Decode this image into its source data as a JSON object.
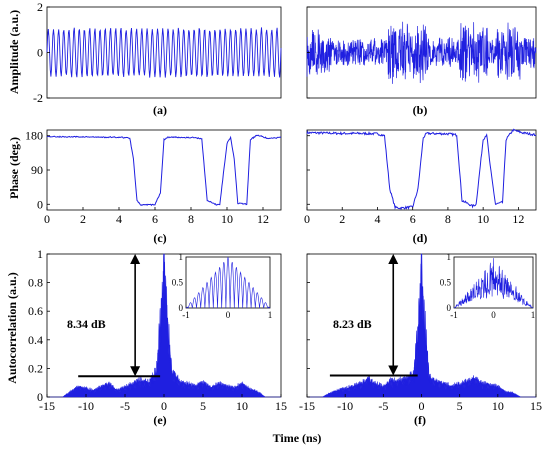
{
  "figure": {
    "ylabels": {
      "amplitude": "Amplitude (a.u.)",
      "phase": "Phase (deg.)",
      "autocorrelation": "Autocorrelation (a.u.)"
    },
    "xlabel": "Time (ns)",
    "panel_labels": [
      "(a)",
      "(b)",
      "(c)",
      "(d)",
      "(e)",
      "(f)"
    ],
    "annotations": {
      "e": "8.34 dB",
      "f": "8.23 dB"
    },
    "colors": {
      "trace": "#1f1fe0",
      "axes": "#000000"
    }
  },
  "chart_data": [
    {
      "panel": "(a)",
      "type": "line",
      "ylabel": "Amplitude (a.u.)",
      "ylim": [
        -2,
        2
      ],
      "yticks": [
        "-2",
        "0",
        "2"
      ],
      "yticks_values": [
        -2,
        0,
        2
      ],
      "xticks": [],
      "description_values": {
        "envelope": 1.1,
        "cycles": 45,
        "x_range": [
          0,
          13
        ]
      }
    },
    {
      "panel": "(b)",
      "type": "line",
      "ylim": [
        -2,
        2
      ],
      "yticks": [],
      "segments": [
        [
          0,
          1.4,
          1.15
        ],
        [
          1.4,
          4.6,
          0.7
        ],
        [
          4.6,
          6.9,
          1.45
        ],
        [
          6.9,
          8.6,
          0.7
        ],
        [
          8.6,
          10.3,
          1.35
        ],
        [
          10.3,
          10.8,
          0.7
        ],
        [
          10.8,
          12.1,
          1.35
        ],
        [
          12.1,
          13,
          0.8
        ]
      ]
    },
    {
      "panel": "(c)",
      "type": "line",
      "ylabel": "Phase (deg.)",
      "xlim": [
        0,
        13
      ],
      "ylim": [
        -15,
        195
      ],
      "xticks": [
        "0",
        "2",
        "4",
        "6",
        "8",
        "10",
        "12"
      ],
      "xticks_values": [
        0,
        2,
        4,
        6,
        8,
        10,
        12
      ],
      "yticks": [
        "0",
        "90",
        "180"
      ],
      "yticks_values": [
        0,
        90,
        180
      ],
      "x": [
        0,
        1,
        2,
        3,
        4,
        4.6,
        4.8,
        5.0,
        5.2,
        6.0,
        6.3,
        6.5,
        6.7,
        7.2,
        8.2,
        8.6,
        8.9,
        9.4,
        9.6,
        10.0,
        10.2,
        10.4,
        10.6,
        11.1,
        11.3,
        11.7,
        12.3,
        13
      ],
      "y": [
        178,
        177,
        177,
        176,
        176,
        174,
        120,
        10,
        -2,
        -1,
        30,
        170,
        176,
        176,
        175,
        172,
        10,
        -1,
        0,
        160,
        176,
        120,
        3,
        0,
        170,
        182,
        172,
        176
      ]
    },
    {
      "panel": "(d)",
      "type": "line",
      "xlim": [
        0,
        13
      ],
      "ylim": [
        -15,
        195
      ],
      "xticks": [
        "0",
        "2",
        "4",
        "6",
        "8",
        "10",
        "12"
      ],
      "xticks_values": [
        0,
        2,
        4,
        6,
        8,
        10,
        12
      ],
      "yticks": [],
      "x": [
        0,
        1,
        2,
        3,
        4,
        4.4,
        4.7,
        5.0,
        5.3,
        6.0,
        6.3,
        6.6,
        6.8,
        8.0,
        8.5,
        8.8,
        9.4,
        9.6,
        10.0,
        10.2,
        10.4,
        10.7,
        11.1,
        11.3,
        11.7,
        12.2,
        13
      ],
      "y": [
        188,
        187,
        186,
        186,
        185,
        180,
        40,
        -8,
        -10,
        -7,
        40,
        175,
        186,
        185,
        182,
        10,
        -5,
        0,
        170,
        184,
        100,
        0,
        5,
        170,
        195,
        188,
        182
      ]
    },
    {
      "panel": "(e)",
      "type": "line",
      "xlim": [
        -15,
        15
      ],
      "ylim": [
        0,
        1
      ],
      "xticks": [
        "-15",
        "-10",
        "-5",
        "0",
        "5",
        "10",
        "15"
      ],
      "xticks_values": [
        -15,
        -10,
        -5,
        0,
        5,
        10,
        15
      ],
      "yticks": [
        "0",
        "0.2",
        "0.4",
        "0.6",
        "0.8",
        "1"
      ],
      "yticks_values": [
        0,
        0.2,
        0.4,
        0.6,
        0.8,
        1
      ],
      "ylabel": "Autocorrelation (a.u.)",
      "peak": 1.0,
      "sidelobe_level": 0.145,
      "psl_db": "8.34 dB",
      "floor_profile": [
        [
          -13,
          0
        ],
        [
          -12,
          0.04
        ],
        [
          -11,
          0.08
        ],
        [
          -9,
          0.05
        ],
        [
          -8,
          0.08
        ],
        [
          -7,
          0.1
        ],
        [
          -6,
          0.05
        ],
        [
          -4,
          0.1
        ],
        [
          -3,
          0.13
        ],
        [
          -2,
          0.11
        ],
        [
          -1,
          0.2
        ],
        [
          -0.5,
          0.55
        ],
        [
          0,
          1.0
        ],
        [
          0.5,
          0.55
        ],
        [
          1,
          0.2
        ],
        [
          2,
          0.12
        ],
        [
          3,
          0.1
        ],
        [
          4,
          0.08
        ],
        [
          5,
          0.11
        ],
        [
          6,
          0.07
        ],
        [
          7,
          0.1
        ],
        [
          9,
          0.07
        ],
        [
          10,
          0.1
        ],
        [
          11,
          0.06
        ],
        [
          12,
          0.04
        ],
        [
          13,
          0
        ]
      ],
      "inset": {
        "xlim": [
          -1,
          1
        ],
        "ylim": [
          0,
          1
        ],
        "xticks": [
          "-1",
          "0",
          "1"
        ],
        "yticks": [
          "0",
          "0.5",
          "1"
        ],
        "lobes": 20
      }
    },
    {
      "panel": "(f)",
      "type": "line",
      "xlim": [
        -15,
        15
      ],
      "ylim": [
        0,
        1
      ],
      "xticks": [
        "-15",
        "-10",
        "-5",
        "0",
        "5",
        "10",
        "15"
      ],
      "xticks_values": [
        -15,
        -10,
        -5,
        0,
        5,
        10,
        15
      ],
      "yticks": [],
      "peak": 1.0,
      "sidelobe_level": 0.15,
      "psl_db": "8.23 dB",
      "floor_profile": [
        [
          -13,
          0
        ],
        [
          -12,
          0.03
        ],
        [
          -11,
          0.05
        ],
        [
          -9,
          0.08
        ],
        [
          -8,
          0.1
        ],
        [
          -7,
          0.14
        ],
        [
          -6,
          0.1
        ],
        [
          -5,
          0.08
        ],
        [
          -4,
          0.13
        ],
        [
          -3,
          0.12
        ],
        [
          -2,
          0.14
        ],
        [
          -1,
          0.18
        ],
        [
          -0.4,
          0.6
        ],
        [
          0,
          1.0
        ],
        [
          0.4,
          0.6
        ],
        [
          1,
          0.16
        ],
        [
          2,
          0.12
        ],
        [
          4,
          0.08
        ],
        [
          6,
          0.12
        ],
        [
          7,
          0.15
        ],
        [
          8,
          0.1
        ],
        [
          10,
          0.08
        ],
        [
          11,
          0.04
        ],
        [
          12,
          0.03
        ],
        [
          13,
          0
        ]
      ],
      "inset": {
        "xlim": [
          -1,
          1
        ],
        "ylim": [
          0,
          1
        ],
        "xticks": [
          "-1",
          "0",
          "1"
        ],
        "yticks": [
          "0",
          "0.5",
          "1"
        ],
        "lobes": 28
      }
    }
  ]
}
